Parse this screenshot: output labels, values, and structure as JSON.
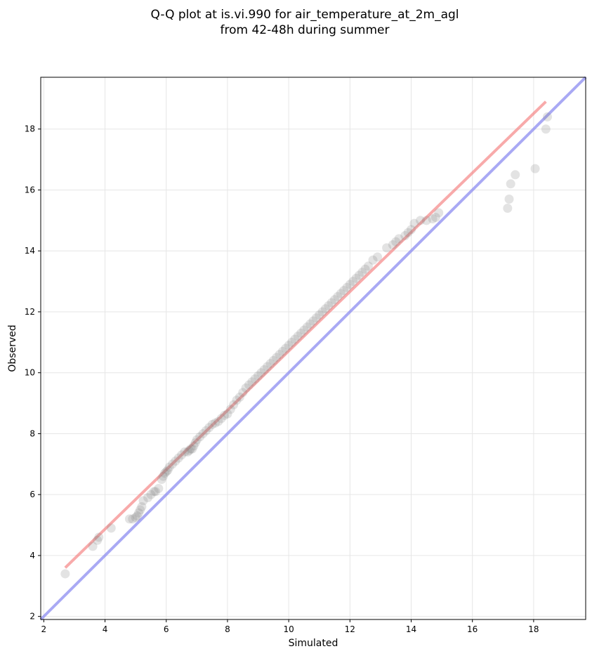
{
  "chart_data": {
    "type": "scatter",
    "title": [
      "Q-Q plot at is.vi.990 for air_temperature_at_2m_agl",
      "from 42-48h during summer"
    ],
    "xlabel": "Simulated",
    "ylabel": "Observed",
    "xlim": [
      1.9,
      19.7
    ],
    "ylim": [
      1.9,
      19.7
    ],
    "xticks": [
      "2",
      "4",
      "6",
      "8",
      "10",
      "12",
      "14",
      "16",
      "18"
    ],
    "yticks": [
      "2",
      "4",
      "6",
      "8",
      "10",
      "12",
      "14",
      "16",
      "18"
    ],
    "grid": true,
    "legend": "none",
    "colors": {
      "points": "#808080",
      "fit_line": "#f47c7c",
      "identity_line": "#8c8cf0"
    },
    "fit_line": {
      "x": [
        2.7,
        18.4
      ],
      "y": [
        3.6,
        18.9
      ]
    },
    "identity_line": {
      "x": [
        1.9,
        19.7
      ],
      "y": [
        1.9,
        19.7
      ]
    },
    "points": {
      "x": [
        2.7,
        3.6,
        3.75,
        3.8,
        4.2,
        4.8,
        4.9,
        5.0,
        5.05,
        5.1,
        5.15,
        5.2,
        5.25,
        5.4,
        5.5,
        5.6,
        5.65,
        5.75,
        5.85,
        5.9,
        5.95,
        6.0,
        6.05,
        6.1,
        6.2,
        6.3,
        6.4,
        6.5,
        6.6,
        6.7,
        6.75,
        6.8,
        6.85,
        6.9,
        6.95,
        7.0,
        7.1,
        7.2,
        7.3,
        7.4,
        7.5,
        7.6,
        7.7,
        7.8,
        7.9,
        8.0,
        8.1,
        8.2,
        8.3,
        8.4,
        8.5,
        8.6,
        8.7,
        8.8,
        8.9,
        9.0,
        9.1,
        9.2,
        9.3,
        9.4,
        9.5,
        9.6,
        9.7,
        9.8,
        9.9,
        10.0,
        10.1,
        10.2,
        10.3,
        10.4,
        10.5,
        10.6,
        10.7,
        10.8,
        10.9,
        11.0,
        11.1,
        11.2,
        11.3,
        11.4,
        11.5,
        11.6,
        11.7,
        11.8,
        11.9,
        12.0,
        12.1,
        12.2,
        12.3,
        12.4,
        12.5,
        12.6,
        12.75,
        12.9,
        13.2,
        13.4,
        13.5,
        13.6,
        13.8,
        13.9,
        14.0,
        14.1,
        14.3,
        14.5,
        14.7,
        14.8,
        14.9,
        17.15,
        17.2,
        17.25,
        17.4,
        18.05,
        18.4,
        18.45
      ],
      "y": [
        3.4,
        4.3,
        4.5,
        4.6,
        4.9,
        5.2,
        5.2,
        5.25,
        5.3,
        5.4,
        5.5,
        5.6,
        5.8,
        5.9,
        6.0,
        6.1,
        6.1,
        6.2,
        6.5,
        6.6,
        6.7,
        6.75,
        6.8,
        6.9,
        7.0,
        7.1,
        7.2,
        7.3,
        7.4,
        7.4,
        7.45,
        7.5,
        7.5,
        7.6,
        7.7,
        7.8,
        7.9,
        8.0,
        8.1,
        8.2,
        8.3,
        8.35,
        8.4,
        8.5,
        8.6,
        8.65,
        8.8,
        8.95,
        9.1,
        9.2,
        9.35,
        9.5,
        9.6,
        9.7,
        9.8,
        9.9,
        10.0,
        10.1,
        10.2,
        10.3,
        10.4,
        10.5,
        10.6,
        10.7,
        10.8,
        10.9,
        11.0,
        11.1,
        11.2,
        11.3,
        11.4,
        11.5,
        11.6,
        11.7,
        11.8,
        11.9,
        12.0,
        12.1,
        12.2,
        12.3,
        12.4,
        12.5,
        12.6,
        12.7,
        12.8,
        12.9,
        13.0,
        13.1,
        13.2,
        13.3,
        13.4,
        13.5,
        13.7,
        13.8,
        14.1,
        14.2,
        14.3,
        14.4,
        14.5,
        14.6,
        14.7,
        14.9,
        15.0,
        15.0,
        15.05,
        15.1,
        15.25,
        15.4,
        15.7,
        16.2,
        16.5,
        16.7,
        18.0,
        18.4
      ]
    }
  }
}
